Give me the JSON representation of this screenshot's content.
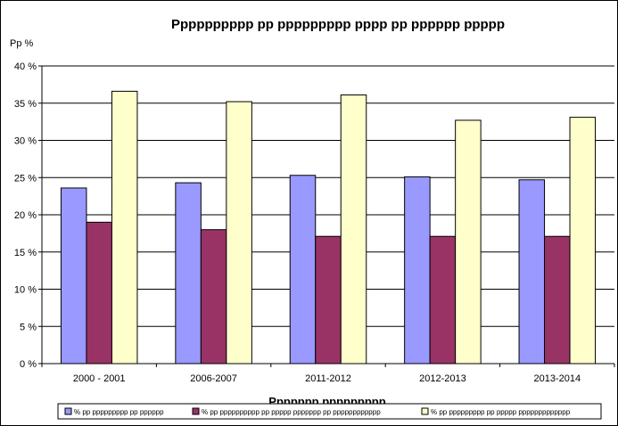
{
  "chart_data": {
    "type": "bar",
    "title": "Pppppppppp pp ppppppppp pppp pp pppppp ppppp",
    "ylabel": "Pp %",
    "xlabel": "Ppppppp ppppppppp",
    "ylim": [
      0,
      40
    ],
    "ytick_labels": [
      "0 %",
      "5 %",
      "10 %",
      "15 %",
      "20 %",
      "25 %",
      "30 %",
      "35 %",
      "40 %"
    ],
    "categories": [
      "2000 - 2001",
      "2006-2007",
      "2011-2012",
      "2012-2013",
      "2013-2014"
    ],
    "grid": true,
    "legend_position": "bottom",
    "series": [
      {
        "name": "% pp ppppppppp pp pppppp",
        "color": "#9999ff",
        "values": [
          23.6,
          24.3,
          25.3,
          25.1,
          24.7
        ]
      },
      {
        "name": "% pp pppppppppp pp ppppp ppppppp pp pppppppppppp",
        "color": "#993366",
        "values": [
          19.0,
          18.0,
          17.1,
          17.1,
          17.1
        ]
      },
      {
        "name": "% pp ppppppppp pp ppppp ppppppppppppp",
        "color": "#ffffcc",
        "values": [
          36.6,
          35.2,
          36.1,
          32.7,
          33.1
        ]
      }
    ]
  }
}
